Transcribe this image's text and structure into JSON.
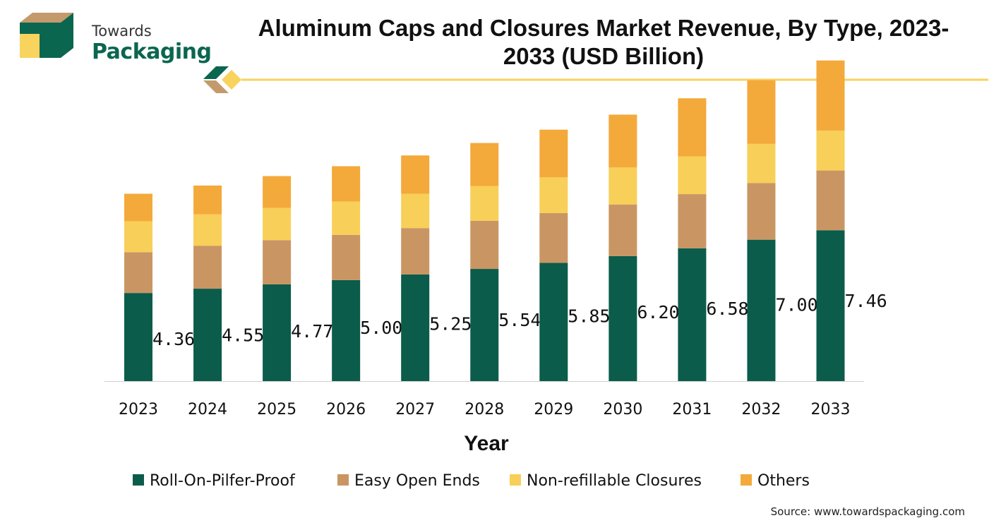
{
  "brand": {
    "line1": "Towards",
    "line2": "Packaging"
  },
  "title": "Aluminum Caps and Closures Market Revenue, By Type, 2023-2033 (USD Billion)",
  "source": "Source: www.towardspackaging.com",
  "colors": {
    "roll_on": "#0b5c4b",
    "easy_open": "#c99663",
    "non_refillable": "#f8cf58",
    "others": "#f4a93b",
    "brand_green": "#0b6650",
    "brand_tan": "#c49a6c",
    "brand_yellow": "#f8d35e"
  },
  "chart_data": {
    "type": "bar",
    "stacked": true,
    "xlabel": "Year",
    "ylabel": "",
    "categories": [
      "2023",
      "2024",
      "2025",
      "2026",
      "2027",
      "2028",
      "2029",
      "2030",
      "2031",
      "2032",
      "2033"
    ],
    "data_labels": [
      "4.36",
      "4.55",
      "4.77",
      "5.00",
      "5.25",
      "5.54",
      "5.85",
      "6.20",
      "6.58",
      "7.00",
      "7.46"
    ],
    "series": [
      {
        "name": "Roll-On-Pilfer-Proof",
        "color": "#0b5c4b",
        "values": [
          2.05,
          2.15,
          2.25,
          2.35,
          2.48,
          2.61,
          2.75,
          2.91,
          3.09,
          3.29,
          3.51
        ]
      },
      {
        "name": "Easy Open Ends",
        "color": "#c99663",
        "values": [
          0.95,
          1.0,
          1.03,
          1.05,
          1.08,
          1.12,
          1.16,
          1.2,
          1.26,
          1.32,
          1.39
        ]
      },
      {
        "name": "Non-refillable Closures",
        "color": "#f8cf58",
        "values": [
          0.72,
          0.73,
          0.75,
          0.78,
          0.8,
          0.81,
          0.83,
          0.86,
          0.88,
          0.91,
          0.93
        ]
      },
      {
        "name": "Others",
        "color": "#f4a93b",
        "values": [
          0.64,
          0.67,
          0.74,
          0.82,
          0.89,
          1.0,
          1.11,
          1.23,
          1.35,
          1.48,
          1.63
        ]
      }
    ],
    "legend": "bottom",
    "grid": false
  }
}
